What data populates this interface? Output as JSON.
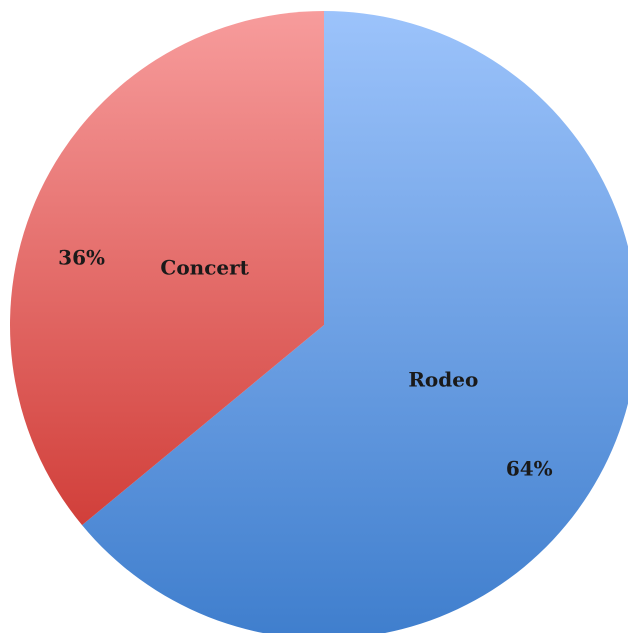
{
  "chart_data": {
    "type": "pie",
    "categories": [
      "Rodeo",
      "Concert"
    ],
    "values": [
      64,
      36
    ],
    "percent_labels": [
      "64%",
      "36%"
    ],
    "colors": {
      "Rodeo": {
        "light": "#9cc3fb",
        "dark": "#3f7ecd"
      },
      "Concert": {
        "light": "#f79c9c",
        "dark": "#d13f3a"
      }
    },
    "start_angle_deg": 0,
    "direction": "clockwise",
    "legend": "none",
    "title": ""
  }
}
